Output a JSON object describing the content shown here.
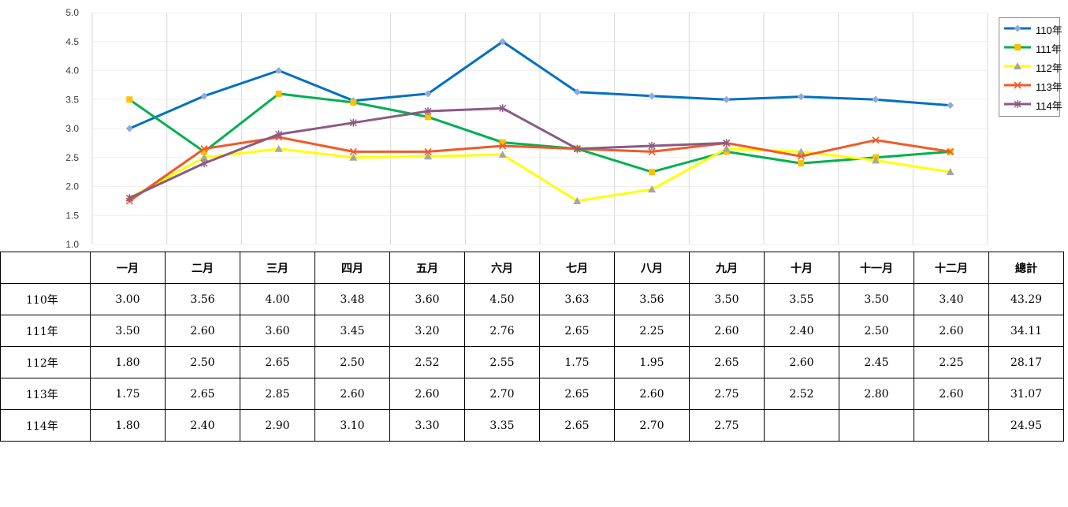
{
  "chart_data": {
    "type": "line",
    "categories": [
      "一月",
      "二月",
      "三月",
      "四月",
      "五月",
      "六月",
      "七月",
      "八月",
      "九月",
      "十月",
      "十一月",
      "十二月"
    ],
    "ylim": [
      1.0,
      5.0
    ],
    "yticks": [
      "1.0",
      "1.5",
      "2.0",
      "2.5",
      "3.0",
      "3.5",
      "4.0",
      "4.5",
      "5.0"
    ],
    "grid": true,
    "legend_position": "top-right",
    "series": [
      {
        "name": "110年",
        "color": "#0070C0",
        "marker": "diamond",
        "marker_color": "#8FAADC",
        "values": [
          3.0,
          3.56,
          4.0,
          3.48,
          3.6,
          4.5,
          3.63,
          3.56,
          3.5,
          3.55,
          3.5,
          3.4
        ]
      },
      {
        "name": "111年",
        "color": "#00B050",
        "marker": "square",
        "marker_color": "#FFC000",
        "values": [
          3.5,
          2.6,
          3.6,
          3.45,
          3.2,
          2.76,
          2.65,
          2.25,
          2.6,
          2.4,
          2.5,
          2.6
        ]
      },
      {
        "name": "112年",
        "color": "#FFFF00",
        "marker": "triangle",
        "marker_color": "#A5A5A5",
        "values": [
          1.8,
          2.5,
          2.65,
          2.5,
          2.52,
          2.55,
          1.75,
          1.95,
          2.65,
          2.6,
          2.45,
          2.25
        ]
      },
      {
        "name": "113年",
        "color": "#F05A28",
        "marker": "x",
        "marker_color": "#F05A28",
        "values": [
          1.75,
          2.65,
          2.85,
          2.6,
          2.6,
          2.7,
          2.65,
          2.6,
          2.75,
          2.52,
          2.8,
          2.6
        ]
      },
      {
        "name": "114年",
        "color": "#8B5A83",
        "marker": "star",
        "marker_color": "#8B5A83",
        "values": [
          1.8,
          2.4,
          2.9,
          3.1,
          3.3,
          3.35,
          2.65,
          2.7,
          2.75,
          null,
          null,
          null
        ]
      }
    ]
  },
  "table": {
    "headers": [
      "一月",
      "二月",
      "三月",
      "四月",
      "五月",
      "六月",
      "七月",
      "八月",
      "九月",
      "十月",
      "十一月",
      "十二月",
      "總計"
    ],
    "rows": [
      {
        "label": "110年",
        "cells": [
          "3.00",
          "3.56",
          "4.00",
          "3.48",
          "3.60",
          "4.50",
          "3.63",
          "3.56",
          "3.50",
          "3.55",
          "3.50",
          "3.40",
          "43.29"
        ]
      },
      {
        "label": "111年",
        "cells": [
          "3.50",
          "2.60",
          "3.60",
          "3.45",
          "3.20",
          "2.76",
          "2.65",
          "2.25",
          "2.60",
          "2.40",
          "2.50",
          "2.60",
          "34.11"
        ]
      },
      {
        "label": "112年",
        "cells": [
          "1.80",
          "2.50",
          "2.65",
          "2.50",
          "2.52",
          "2.55",
          "1.75",
          "1.95",
          "2.65",
          "2.60",
          "2.45",
          "2.25",
          "28.17"
        ]
      },
      {
        "label": "113年",
        "cells": [
          "1.75",
          "2.65",
          "2.85",
          "2.60",
          "2.60",
          "2.70",
          "2.65",
          "2.60",
          "2.75",
          "2.52",
          "2.80",
          "2.60",
          "31.07"
        ]
      },
      {
        "label": "114年",
        "cells": [
          "1.80",
          "2.40",
          "2.90",
          "3.10",
          "3.30",
          "3.35",
          "2.65",
          "2.70",
          "2.75",
          "",
          "",
          "",
          "24.95"
        ]
      }
    ]
  }
}
